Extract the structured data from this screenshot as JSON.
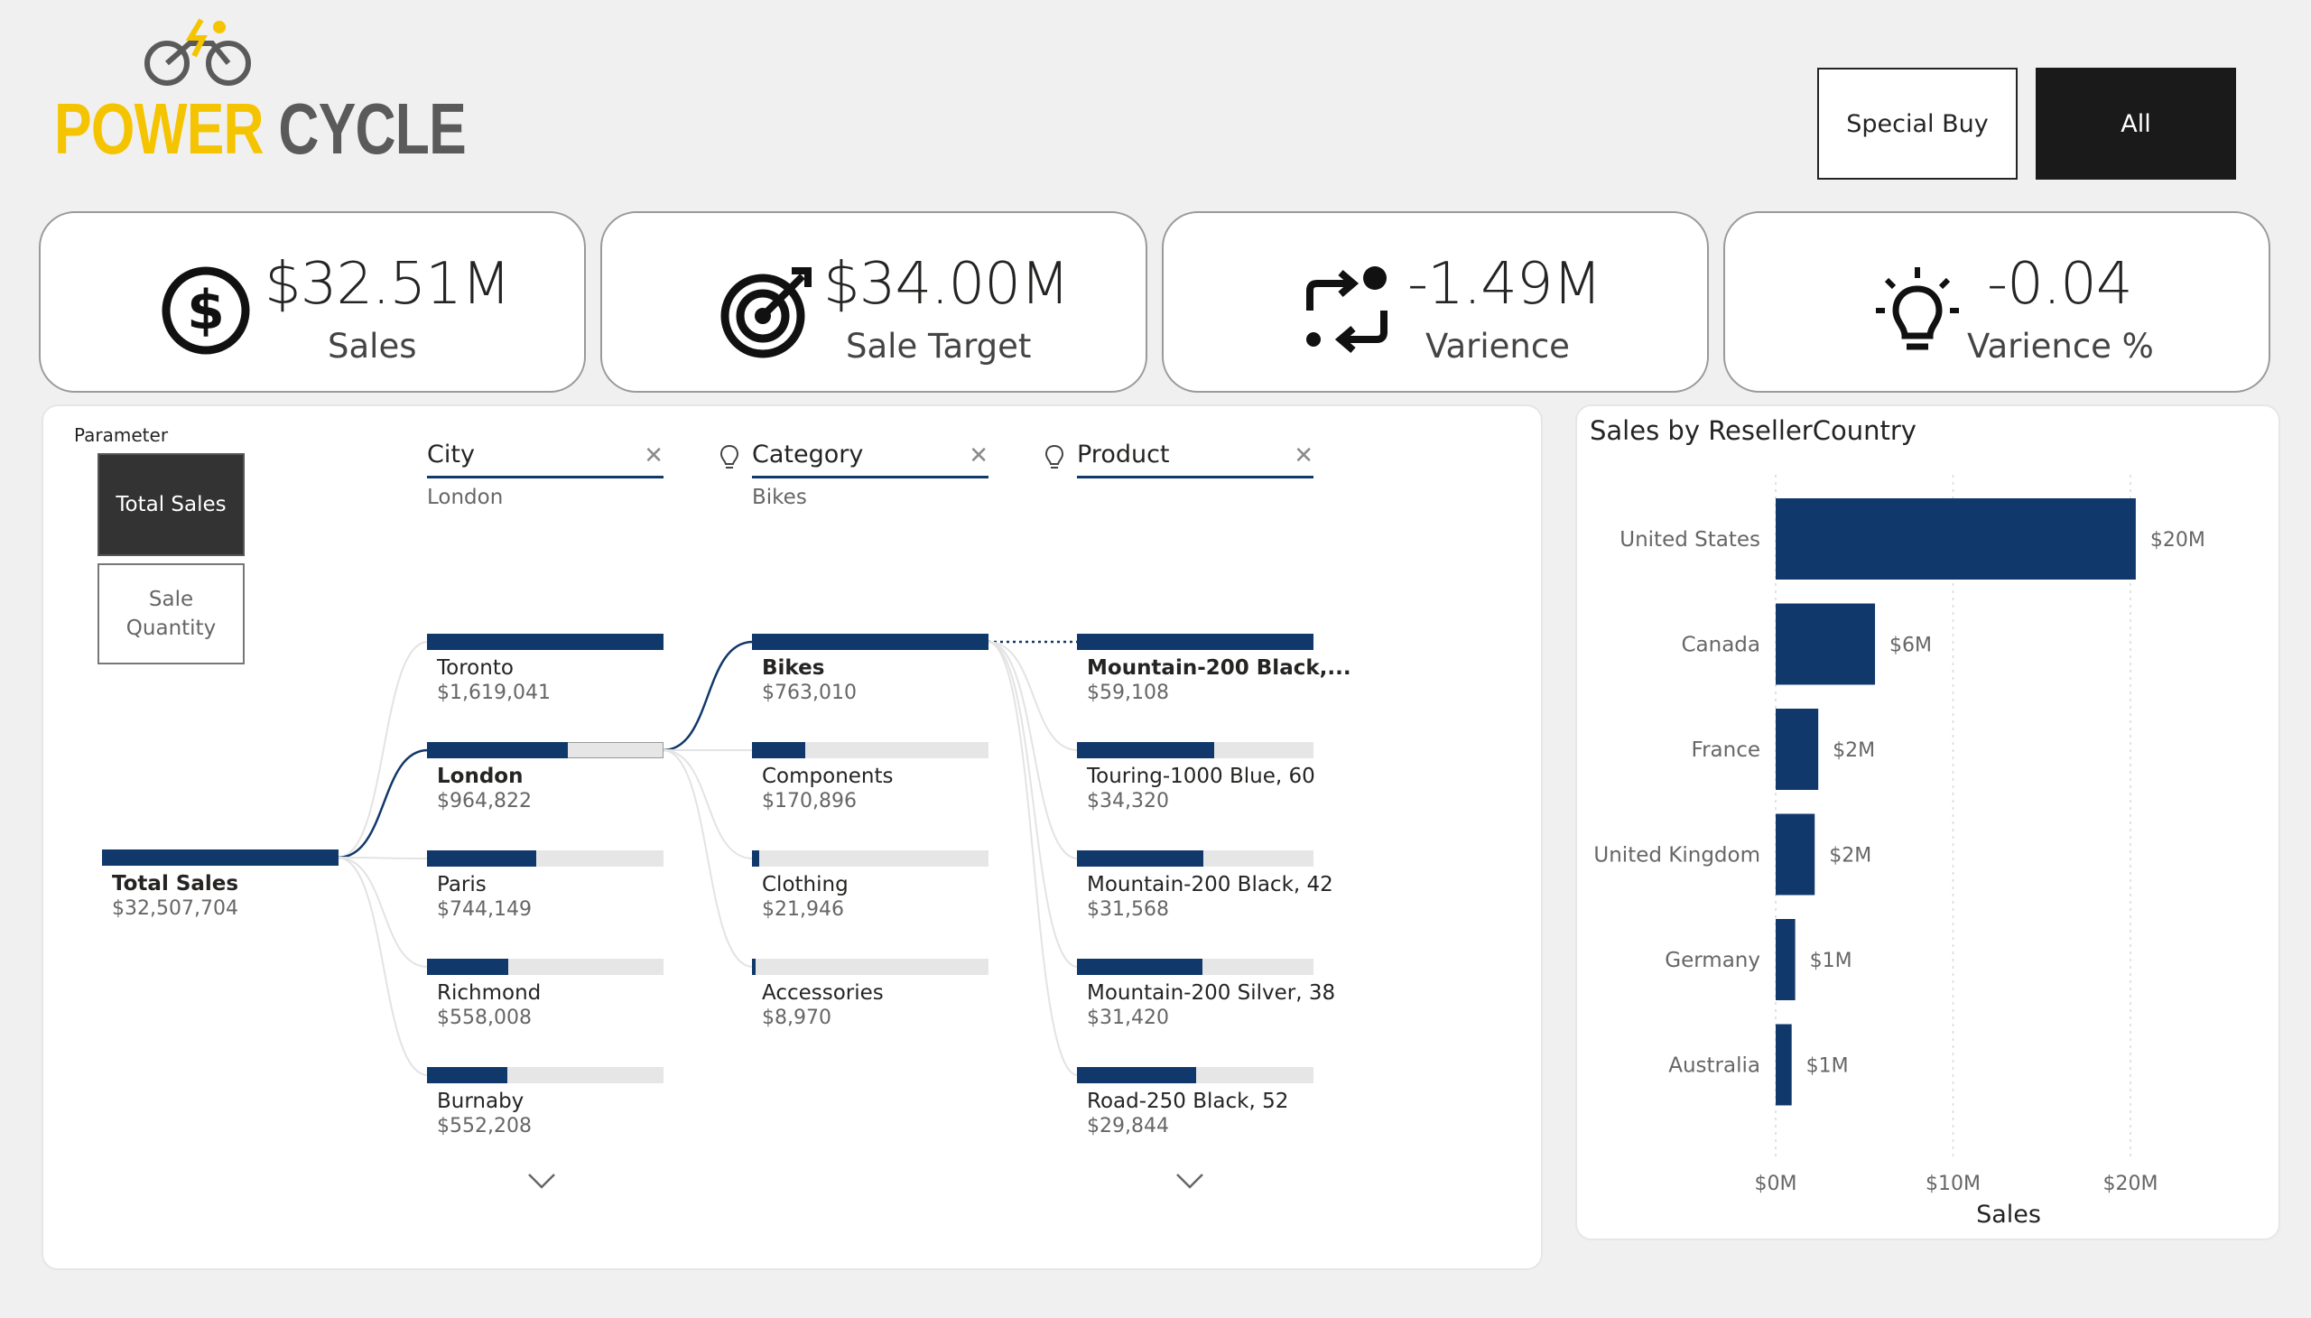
{
  "logo": {
    "word1": "POWER",
    "word2": "CYCLE"
  },
  "slicer_buttons": {
    "special_buy": "Special Buy",
    "all": "All"
  },
  "kpis": [
    {
      "value": "$32.51M",
      "label": "Sales",
      "icon": "dollar-icon"
    },
    {
      "value": "$34.00M",
      "label": "Sale Target",
      "icon": "target-icon"
    },
    {
      "value": "-1.49M",
      "label": "Varience",
      "icon": "variance-arrows-icon"
    },
    {
      "value": "-0.04",
      "label": "Varience %",
      "icon": "lightbulb-icon"
    }
  ],
  "parameter": {
    "title": "Parameter",
    "options": [
      "Total Sales",
      "Sale Quantity"
    ],
    "selected": "Total Sales"
  },
  "tree": {
    "root": {
      "label": "Total Sales",
      "value": "$32,507,704"
    },
    "columns": [
      {
        "title": "City",
        "filter": "London"
      },
      {
        "title": "Category",
        "filter": "Bikes"
      },
      {
        "title": "Product",
        "filter": ""
      }
    ],
    "city": [
      {
        "label": "Toronto",
        "value": "$1,619,041",
        "ratio": 1.0
      },
      {
        "label": "London",
        "value": "$964,822",
        "ratio": 0.596
      },
      {
        "label": "Paris",
        "value": "$744,149",
        "ratio": 0.46
      },
      {
        "label": "Richmond",
        "value": "$558,008",
        "ratio": 0.345
      },
      {
        "label": "Burnaby",
        "value": "$552,208",
        "ratio": 0.341
      }
    ],
    "category": [
      {
        "label": "Bikes",
        "value": "$763,010",
        "ratio": 1.0
      },
      {
        "label": "Components",
        "value": "$170,896",
        "ratio": 0.224
      },
      {
        "label": "Clothing",
        "value": "$21,946",
        "ratio": 0.029
      },
      {
        "label": "Accessories",
        "value": "$8,970",
        "ratio": 0.012
      }
    ],
    "product": [
      {
        "label": "Mountain-200 Black,...",
        "value": "$59,108",
        "ratio": 1.0
      },
      {
        "label": "Touring-1000 Blue, 60",
        "value": "$34,320",
        "ratio": 0.581
      },
      {
        "label": "Mountain-200 Black, 42",
        "value": "$31,568",
        "ratio": 0.534
      },
      {
        "label": "Mountain-200 Silver, 38",
        "value": "$31,420",
        "ratio": 0.532
      },
      {
        "label": "Road-250 Black, 52",
        "value": "$29,844",
        "ratio": 0.505
      }
    ]
  },
  "colors": {
    "accent": "#11386a",
    "bar_bg": "#e6e6e6",
    "logo_yellow": "#f5c400"
  },
  "chart_data": {
    "type": "bar",
    "orientation": "horizontal",
    "title": "Sales by ResellerCountry",
    "categories": [
      "United States",
      "Canada",
      "France",
      "United Kingdom",
      "Germany",
      "Australia"
    ],
    "values": [
      20.3,
      5.6,
      2.4,
      2.2,
      1.1,
      0.9
    ],
    "data_labels": [
      "$20M",
      "$6M",
      "$2M",
      "$2M",
      "$1M",
      "$1M"
    ],
    "xlabel": "Sales",
    "ylabel": "",
    "xlim": [
      0,
      22
    ],
    "ticks": [
      0,
      10,
      20
    ],
    "tick_labels": [
      "$0M",
      "$10M",
      "$20M"
    ],
    "grid": true
  }
}
